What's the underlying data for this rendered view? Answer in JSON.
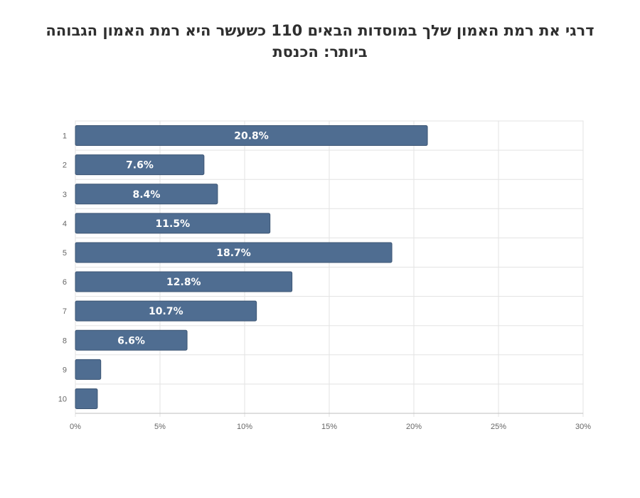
{
  "title_lines": [
    "דרגי את רמת האמון שלך במוסדות הבאים 110 כשעשר היא רמת האמון הגבוהה",
    "ביותר: הכנסת"
  ],
  "chart_data": {
    "type": "bar",
    "orientation": "horizontal",
    "title": "דרגי את רמת האמון שלך במוסדות הבאים 110 כשעשר היא רמת האמון הגבוהה ביותר: הכנסת",
    "categories": [
      "1",
      "2",
      "3",
      "4",
      "5",
      "6",
      "7",
      "8",
      "9",
      "10"
    ],
    "values": [
      20.8,
      7.6,
      8.4,
      11.5,
      18.7,
      12.8,
      10.7,
      6.6,
      1.5,
      1.3
    ],
    "data_labels": [
      "20.8%",
      "7.6%",
      "8.4%",
      "11.5%",
      "18.7%",
      "12.8%",
      "10.7%",
      "6.6%",
      "",
      ""
    ],
    "xlim": [
      0,
      30
    ],
    "x_ticks": [
      "0%",
      "5%",
      "10%",
      "15%",
      "20%",
      "25%",
      "30%"
    ],
    "x_tick_values": [
      0,
      5,
      10,
      15,
      20,
      25,
      30
    ],
    "grid": true,
    "bar_color": "#4f6d91",
    "grid_color": "#e3e3e3"
  }
}
